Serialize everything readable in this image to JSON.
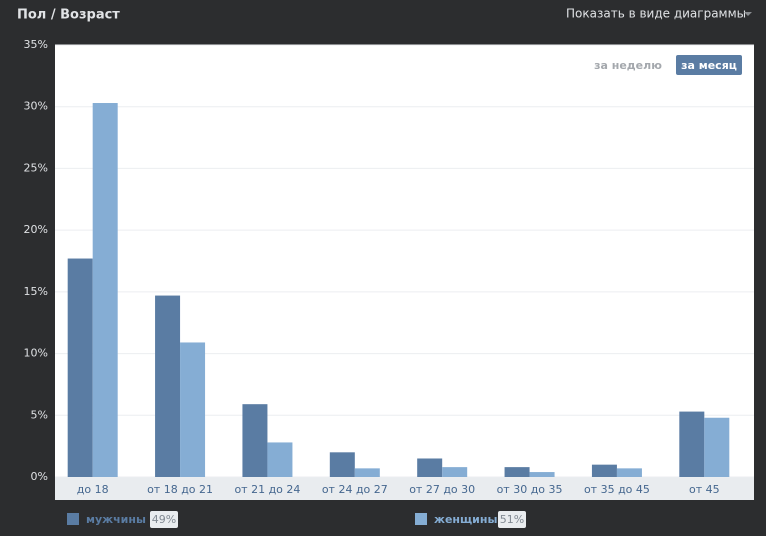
{
  "header": {
    "title": "Пол / Возраст",
    "view_switch": "Показать в виде диаграммы"
  },
  "period_buttons": [
    "за неделю",
    "за месяц"
  ],
  "chart_data": {
    "type": "bar",
    "categories": [
      "до 18",
      "от 18 до 21",
      "от 21 до 24",
      "от 24 до 27",
      "от 27 до 30",
      "от 30 до 35",
      "от 35 до 45",
      "от 45"
    ],
    "series": [
      {
        "name": "мужчины",
        "color": "#5a7ca3",
        "values": [
          17.7,
          14.7,
          5.9,
          2.0,
          1.5,
          0.8,
          1.0,
          5.3
        ],
        "share": {
          "value": 49,
          "label": "49%"
        }
      },
      {
        "name": "женщины",
        "color": "#85add4",
        "values": [
          30.3,
          10.9,
          2.8,
          0.7,
          0.8,
          0.4,
          0.7,
          4.8
        ],
        "share": {
          "value": 51,
          "label": "51%"
        }
      }
    ],
    "ylim": [
      0,
      35
    ],
    "yticks": [
      {
        "value": 0,
        "label": "0%"
      },
      {
        "value": 5,
        "label": "5%"
      },
      {
        "value": 10,
        "label": "10%"
      },
      {
        "value": 15,
        "label": "15%"
      },
      {
        "value": 20,
        "label": "20%"
      },
      {
        "value": 25,
        "label": "25%"
      },
      {
        "value": 30,
        "label": "30%"
      },
      {
        "value": 35,
        "label": "35%"
      }
    ],
    "grid": true
  }
}
